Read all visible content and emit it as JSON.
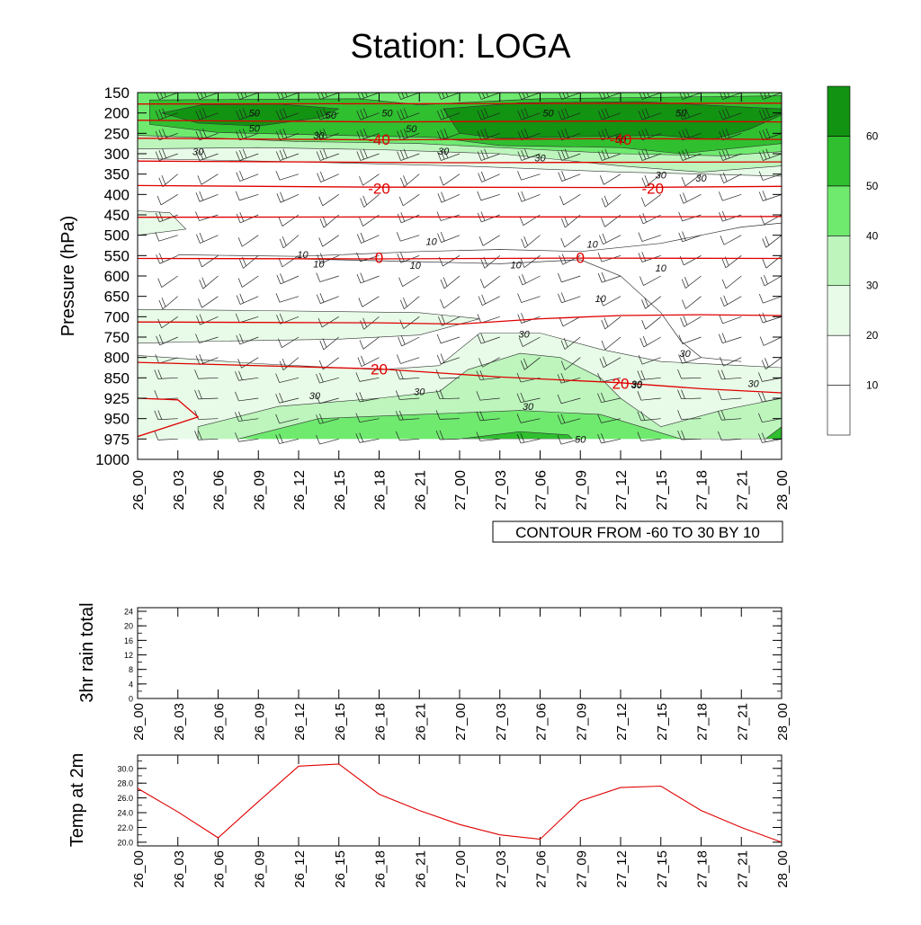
{
  "title": "Station: LOGA",
  "time_labels": [
    "26_00",
    "26_03",
    "26_06",
    "26_09",
    "26_12",
    "26_15",
    "26_18",
    "26_21",
    "27_00",
    "27_03",
    "27_06",
    "27_09",
    "27_12",
    "27_15",
    "27_18",
    "27_21",
    "28_00"
  ],
  "chart_data": [
    {
      "id": "cross-section",
      "type": "heatmap",
      "title": "Station: LOGA",
      "ylabel": "Pressure (hPa)",
      "xlabel": "",
      "x_categories": [
        "26_00",
        "26_03",
        "26_06",
        "26_09",
        "26_12",
        "26_15",
        "26_18",
        "26_21",
        "27_00",
        "27_03",
        "27_06",
        "27_09",
        "27_12",
        "27_15",
        "27_18",
        "27_21",
        "28_00"
      ],
      "pressure_levels": [
        150,
        200,
        250,
        300,
        350,
        400,
        450,
        500,
        550,
        600,
        650,
        700,
        750,
        800,
        850,
        925,
        950,
        975,
        1000
      ],
      "ylim": [
        1000,
        150
      ],
      "fill_field": "wind speed",
      "wind_speed_bands": [
        {
          "from": 0,
          "to": 10,
          "color": "#ffffff"
        },
        {
          "from": 10,
          "to": 20,
          "color": "#ffffff"
        },
        {
          "from": 20,
          "to": 30,
          "color": "#e8fbe8"
        },
        {
          "from": 30,
          "to": 40,
          "color": "#bdf5bd"
        },
        {
          "from": 40,
          "to": 50,
          "color": "#6fea6f"
        },
        {
          "from": 50,
          "to": 60,
          "color": "#2fbf2f"
        },
        {
          "from": 60,
          "to": 70,
          "color": "#129312"
        }
      ],
      "colorbar_ticks": [
        "10",
        "20",
        "30",
        "40",
        "50",
        "60"
      ],
      "temperature_contours": {
        "color": "#e00000",
        "info": "CONTOUR FROM -60 TO 30 BY 10",
        "labels": [
          {
            "text": "-40",
            "x": 6,
            "p": 265
          },
          {
            "text": "-40",
            "x": 12,
            "p": 265
          },
          {
            "text": "-20",
            "x": 6,
            "p": 385
          },
          {
            "text": "-20",
            "x": 12.8,
            "p": 385
          },
          {
            "text": "0",
            "x": 6,
            "p": 555
          },
          {
            "text": "0",
            "x": 11,
            "p": 555
          },
          {
            "text": "20",
            "x": 6,
            "p": 828
          },
          {
            "text": "20",
            "x": 12,
            "p": 870
          }
        ]
      },
      "wind_speed_labels": [
        "50",
        "50",
        "50",
        "50",
        "50",
        "50",
        "50",
        "50",
        "30",
        "30",
        "30",
        "30",
        "30",
        "30",
        "30",
        "30",
        "10",
        "10",
        "10",
        "10",
        "10",
        "10",
        "10",
        "10",
        "30",
        "30",
        "30",
        "30",
        "30",
        "30",
        "50"
      ]
    },
    {
      "id": "rain",
      "type": "line",
      "ylabel": "3hr rain total",
      "xlabel": "",
      "categories": [
        "26_00",
        "26_03",
        "26_06",
        "26_09",
        "26_12",
        "26_15",
        "26_18",
        "26_21",
        "27_00",
        "27_03",
        "27_06",
        "27_09",
        "27_12",
        "27_15",
        "27_18",
        "27_21",
        "28_00"
      ],
      "ylim": [
        0,
        25
      ],
      "yticks": [
        "0",
        "4",
        "8",
        "12",
        "16",
        "20",
        "24"
      ],
      "series": []
    },
    {
      "id": "temp2m",
      "type": "line",
      "ylabel": "Temp at 2m",
      "xlabel": "",
      "categories": [
        "26_00",
        "26_03",
        "26_06",
        "26_09",
        "26_12",
        "26_15",
        "26_18",
        "26_21",
        "27_00",
        "27_03",
        "27_06",
        "27_09",
        "27_12",
        "27_15",
        "27_18",
        "27_21",
        "28_00"
      ],
      "ylim": [
        19.5,
        31.8
      ],
      "yticks": [
        "20.0",
        "22.0",
        "24.0",
        "26.0",
        "28.0",
        "30.0"
      ],
      "series": [
        {
          "name": "Temp at 2m",
          "color": "#e00000",
          "values": [
            27.3,
            24.1,
            20.6,
            25.5,
            30.3,
            30.6,
            26.5,
            24.3,
            22.4,
            21.0,
            20.4,
            25.6,
            27.4,
            27.6,
            24.3,
            22.0,
            20.0
          ]
        }
      ]
    }
  ]
}
